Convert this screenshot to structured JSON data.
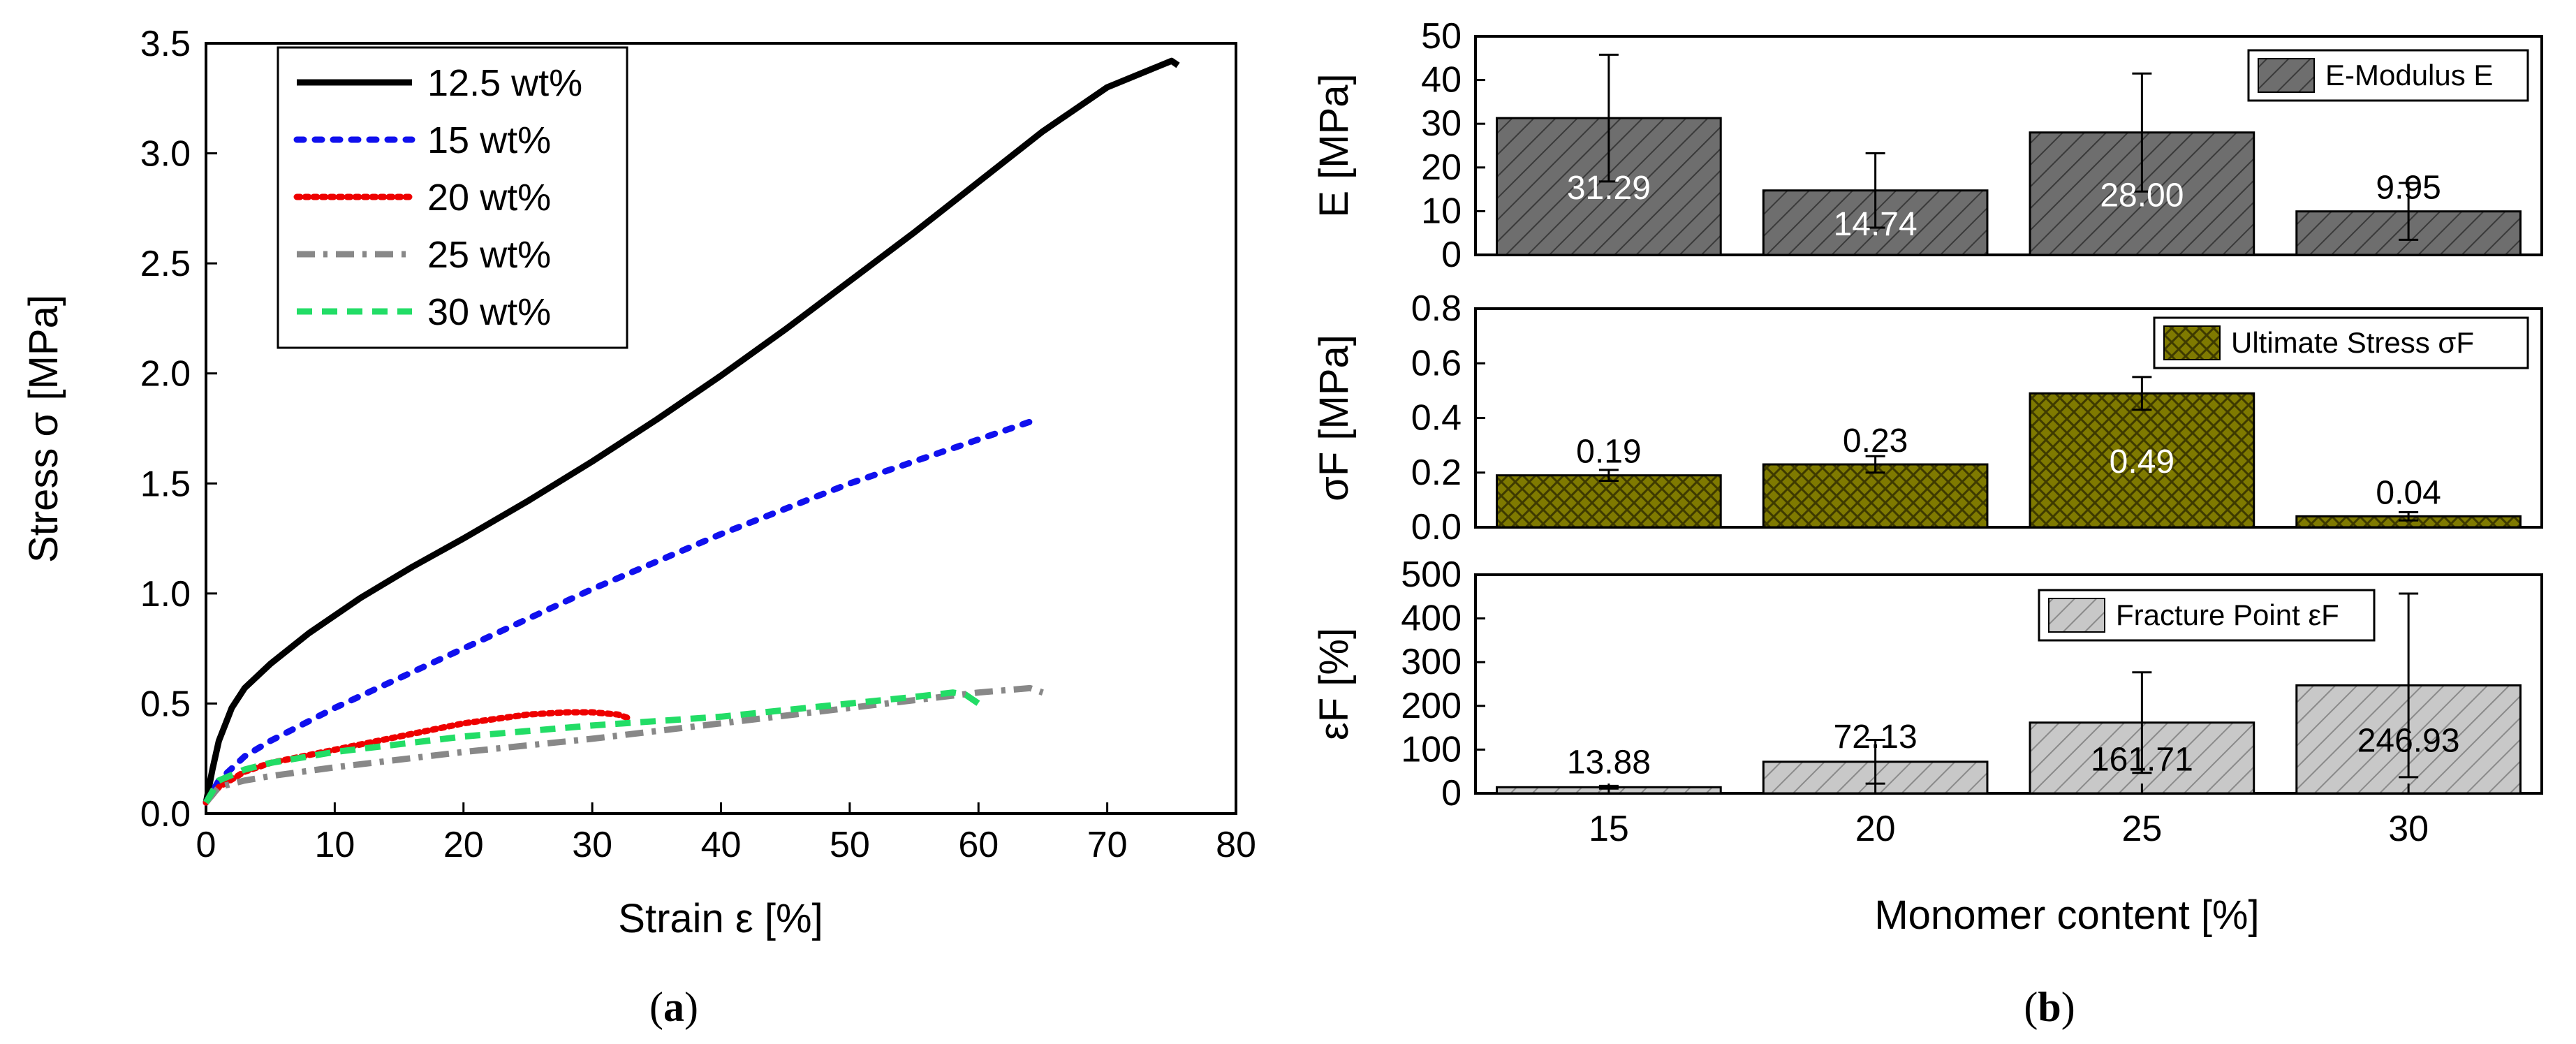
{
  "chart_data": [
    {
      "type": "line",
      "caption": "a",
      "xlabel": "Strain ε [%]",
      "ylabel": "Stress σ [MPa]",
      "xlim": [
        0,
        80
      ],
      "ylim": [
        0,
        3.5
      ],
      "xticks": [
        "0",
        "10",
        "20",
        "30",
        "40",
        "50",
        "60",
        "70",
        "80"
      ],
      "yticks": [
        "0.0",
        "0.5",
        "1.0",
        "1.5",
        "2.0",
        "2.5",
        "3.0",
        "3.5"
      ],
      "legend_position": "top-left",
      "series": [
        {
          "name": "12.5 wt%",
          "color": "#000000",
          "style": "solid",
          "x": [
            0,
            0.5,
            1,
            2,
            3,
            5,
            8,
            12,
            16,
            20,
            25,
            30,
            35,
            40,
            45,
            50,
            55,
            60,
            65,
            70,
            75,
            75.5
          ],
          "y": [
            0.05,
            0.2,
            0.33,
            0.48,
            0.57,
            0.68,
            0.82,
            0.98,
            1.12,
            1.25,
            1.42,
            1.6,
            1.79,
            1.99,
            2.2,
            2.42,
            2.64,
            2.87,
            3.1,
            3.3,
            3.42,
            3.4
          ]
        },
        {
          "name": "15 wt%",
          "color": "#1010ee",
          "style": "dotted",
          "x": [
            0,
            1,
            3,
            5,
            10,
            20,
            30,
            40,
            50,
            60,
            64
          ],
          "y": [
            0.05,
            0.15,
            0.26,
            0.33,
            0.48,
            0.75,
            1.02,
            1.27,
            1.5,
            1.7,
            1.78
          ]
        },
        {
          "name": "20 wt%",
          "color": "#ee0000",
          "style": "dotted-fine",
          "x": [
            0,
            1,
            3,
            5,
            10,
            15,
            20,
            25,
            28,
            30,
            32,
            33
          ],
          "y": [
            0.05,
            0.12,
            0.19,
            0.23,
            0.29,
            0.35,
            0.41,
            0.45,
            0.46,
            0.46,
            0.45,
            0.43
          ]
        },
        {
          "name": "25 wt%",
          "color": "#888888",
          "style": "dash-dot",
          "x": [
            0,
            1,
            3,
            5,
            10,
            20,
            30,
            40,
            50,
            60,
            64,
            65
          ],
          "y": [
            0.05,
            0.12,
            0.15,
            0.17,
            0.21,
            0.28,
            0.34,
            0.41,
            0.48,
            0.55,
            0.57,
            0.55
          ]
        },
        {
          "name": "30 wt%",
          "color": "#22dd66",
          "style": "dashed",
          "x": [
            0,
            1,
            3,
            5,
            10,
            20,
            30,
            40,
            50,
            55,
            58,
            59,
            60
          ],
          "y": [
            0.05,
            0.15,
            0.2,
            0.23,
            0.28,
            0.35,
            0.4,
            0.44,
            0.5,
            0.53,
            0.55,
            0.54,
            0.5
          ]
        }
      ]
    },
    {
      "type": "bar",
      "caption": "b",
      "xlabel": "Monomer content [%]",
      "categories": [
        "15",
        "20",
        "25",
        "30"
      ],
      "panels": [
        {
          "ylabel": "E [MPa]",
          "legend": "E-Modulus E",
          "legend_position": "top-right",
          "color": "#6e6e6e",
          "hatch": "diagonal",
          "ylim": [
            0,
            50
          ],
          "yticks": [
            "0",
            "10",
            "20",
            "30",
            "40",
            "50"
          ],
          "values": [
            31.29,
            14.74,
            28.0,
            9.95
          ],
          "errors": [
            14.5,
            8.5,
            13.5,
            6.5
          ],
          "labels": [
            "31.29",
            "14.74",
            "28.00",
            "9.95"
          ],
          "label_color": "#ffffff"
        },
        {
          "ylabel": "σF [MPa]",
          "legend": "Ultimate Stress σF",
          "legend_position": "top-right",
          "color": "#7f7a00",
          "hatch": "crosshatch",
          "ylim": [
            0,
            0.8
          ],
          "yticks": [
            "0.0",
            "0.2",
            "0.4",
            "0.6",
            "0.8"
          ],
          "values": [
            0.19,
            0.23,
            0.49,
            0.04
          ],
          "errors": [
            0.02,
            0.03,
            0.06,
            0.015
          ],
          "labels": [
            "0.19",
            "0.23",
            "0.49",
            "0.04"
          ],
          "label_color": "#ffffff"
        },
        {
          "ylabel": "εF [%]",
          "legend": "Fracture Point εF",
          "legend_position": "top-center",
          "color": "#c8c8c8",
          "hatch": "diagonal",
          "ylim": [
            0,
            500
          ],
          "yticks": [
            "0",
            "100",
            "200",
            "300",
            "400",
            "500"
          ],
          "values": [
            13.88,
            72.13,
            161.71,
            246.93
          ],
          "errors": [
            3,
            50,
            115,
            210
          ],
          "labels": [
            "13.88",
            "72.13",
            "161.71",
            "246.93"
          ],
          "label_color": "#000000"
        }
      ]
    }
  ]
}
